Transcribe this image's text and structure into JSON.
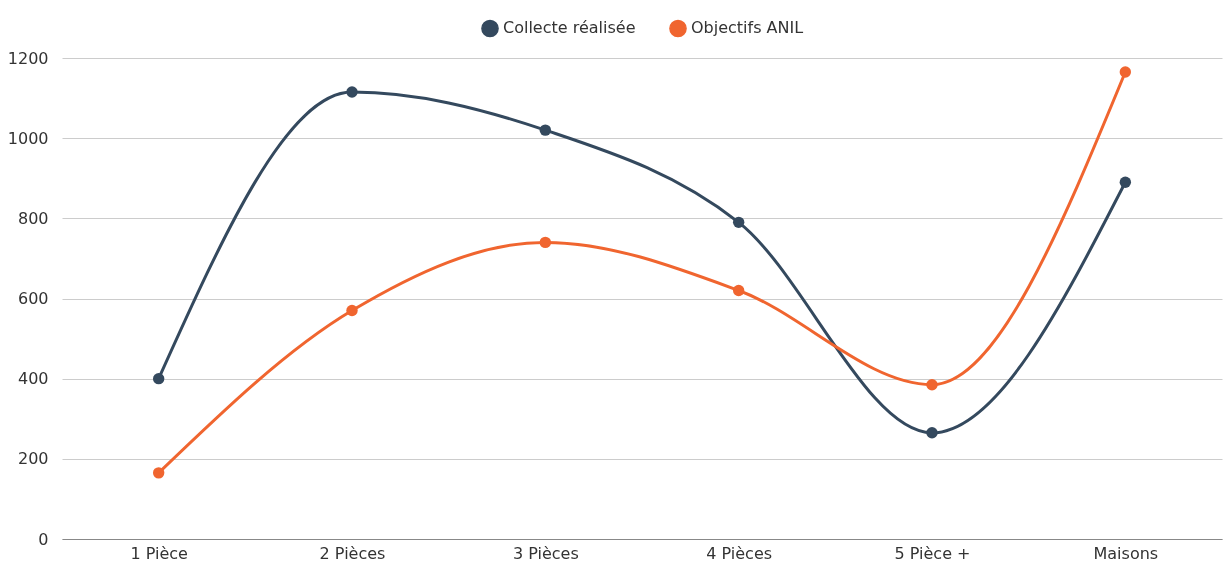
{
  "chart_data": {
    "type": "line",
    "categories": [
      "1 Pièce",
      "2 Pièces",
      "3 Pièces",
      "4 Pièces",
      "5 Pièce +",
      "Maisons"
    ],
    "series": [
      {
        "name": "Collecte réalisée",
        "color": "#34495e",
        "values": [
          400,
          1115,
          1020,
          790,
          265,
          890
        ]
      },
      {
        "name": "Objectifs ANIL",
        "color": "#f0652f",
        "values": [
          165,
          570,
          740,
          620,
          385,
          1165
        ]
      }
    ],
    "ylim": [
      0,
      1200
    ],
    "yticks": [
      0,
      200,
      400,
      600,
      800,
      1000,
      1200
    ],
    "grid": "y",
    "legend": "top",
    "marker": "circle",
    "line_style": "solid"
  }
}
